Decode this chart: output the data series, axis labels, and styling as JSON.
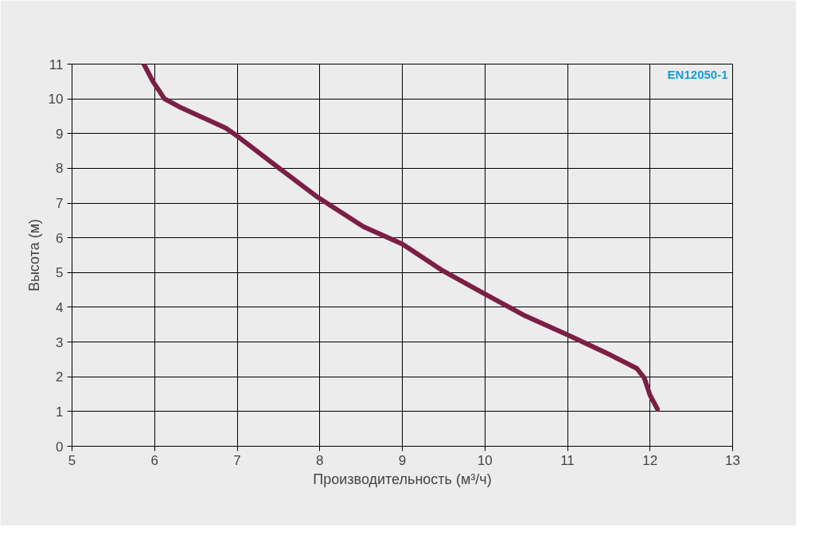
{
  "chart_data": {
    "type": "line",
    "xlabel": "Производительность (м³/ч)",
    "ylabel": "Высота (м)",
    "annotations": [
      "EN12050-1"
    ],
    "x": [
      5.87,
      5.98,
      6.12,
      6.3,
      6.86,
      7.0,
      7.51,
      7.98,
      8.53,
      9.0,
      9.47,
      9.98,
      10.49,
      11.0,
      11.51,
      11.84,
      11.93,
      12.0,
      12.09
    ],
    "series": [
      {
        "color": "#7b1f45",
        "values": [
          11,
          10.5,
          10.0,
          9.77,
          9.16,
          8.93,
          8.0,
          7.16,
          6.32,
          5.82,
          5.08,
          4.41,
          3.75,
          3.21,
          2.64,
          2.24,
          1.97,
          1.47,
          1.07
        ]
      }
    ],
    "xlim": [
      5,
      13
    ],
    "xticks": [
      5,
      6,
      7,
      8,
      9,
      10,
      11,
      12,
      13
    ],
    "ylim": [
      0,
      11
    ],
    "yticks": [
      0,
      1,
      2,
      3,
      4,
      5,
      6,
      7,
      8,
      9,
      10,
      11
    ],
    "grid": true,
    "line_style": "solid",
    "marker": "none"
  }
}
